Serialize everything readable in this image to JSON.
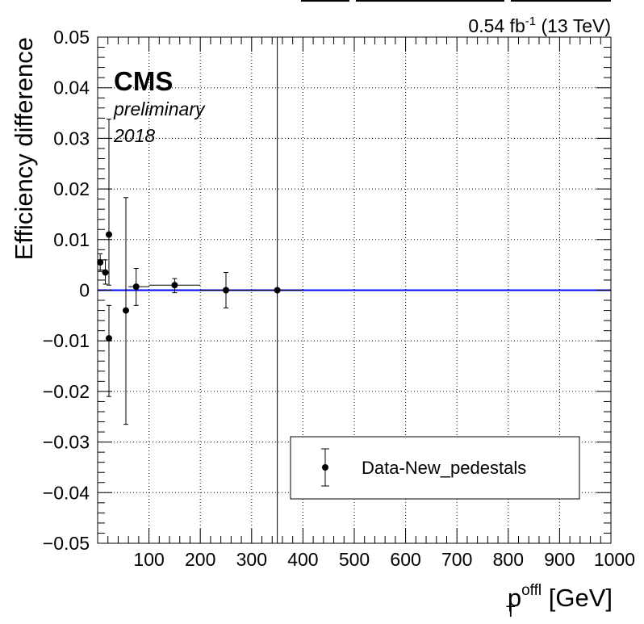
{
  "lumi_label": "0.54 fb",
  "lumi_exponent": "-1",
  "energy_label": " (13 TeV)",
  "cms_label": "CMS",
  "preliminary_label": "preliminary",
  "year_label": "2018",
  "chart_data": {
    "type": "scatter",
    "title": "",
    "xlabel_main": "p",
    "xlabel_sub": "T",
    "xlabel_sup": "offl",
    "xlabel_unit": " [GeV]",
    "ylabel": "Efficiency difference",
    "xlim": [
      0,
      1000
    ],
    "ylim": [
      -0.05,
      0.05
    ],
    "xticks": [
      100,
      200,
      300,
      400,
      500,
      600,
      700,
      800,
      900,
      1000
    ],
    "xtick_labels": [
      "100",
      "200",
      "300",
      "400",
      "500",
      "600",
      "700",
      "800",
      "900",
      "1000"
    ],
    "yticks": [
      0.05,
      0.04,
      0.03,
      0.02,
      0.01,
      0,
      -0.01,
      -0.02,
      -0.03,
      -0.04,
      -0.05
    ],
    "ytick_labels": [
      "0.05",
      "0.04",
      "0.03",
      "0.02",
      "0.01",
      "0",
      "−0.01",
      "−0.02",
      "−0.03",
      "−0.04",
      "−0.05"
    ],
    "grid": true,
    "reference_line_y": 0,
    "legend_position": "bottom-right",
    "series": [
      {
        "name": "Data-New_pedestals",
        "points": [
          {
            "x": 5,
            "y": 0.0055,
            "xlo": 0,
            "xhi": 10,
            "ylo": 0.0037,
            "yhi": 0.0072
          },
          {
            "x": 15,
            "y": 0.0035,
            "xlo": 10,
            "xhi": 20,
            "ylo": 0.0012,
            "yhi": 0.006
          },
          {
            "x": 22,
            "y": 0.011,
            "xlo": 20,
            "xhi": 25,
            "ylo": 0.001,
            "yhi": 0.0338
          },
          {
            "x": 22,
            "y": -0.0095,
            "xlo": 20,
            "xhi": 25,
            "ylo": -0.021,
            "yhi": -0.003
          },
          {
            "x": 55,
            "y": -0.004,
            "xlo": 50,
            "xhi": 60,
            "ylo": -0.0265,
            "yhi": 0.0183
          },
          {
            "x": 75,
            "y": 0.0007,
            "xlo": 60,
            "xhi": 100,
            "ylo": -0.003,
            "yhi": 0.0043
          },
          {
            "x": 150,
            "y": 0.001,
            "xlo": 100,
            "xhi": 200,
            "ylo": -0.0005,
            "yhi": 0.0023
          },
          {
            "x": 250,
            "y": 0.0,
            "xlo": 200,
            "xhi": 300,
            "ylo": -0.0035,
            "yhi": 0.0035
          },
          {
            "x": 350,
            "y": 0.0,
            "xlo": 300,
            "xhi": 400,
            "ylo": -0.05,
            "yhi": 0.05
          }
        ]
      }
    ]
  }
}
